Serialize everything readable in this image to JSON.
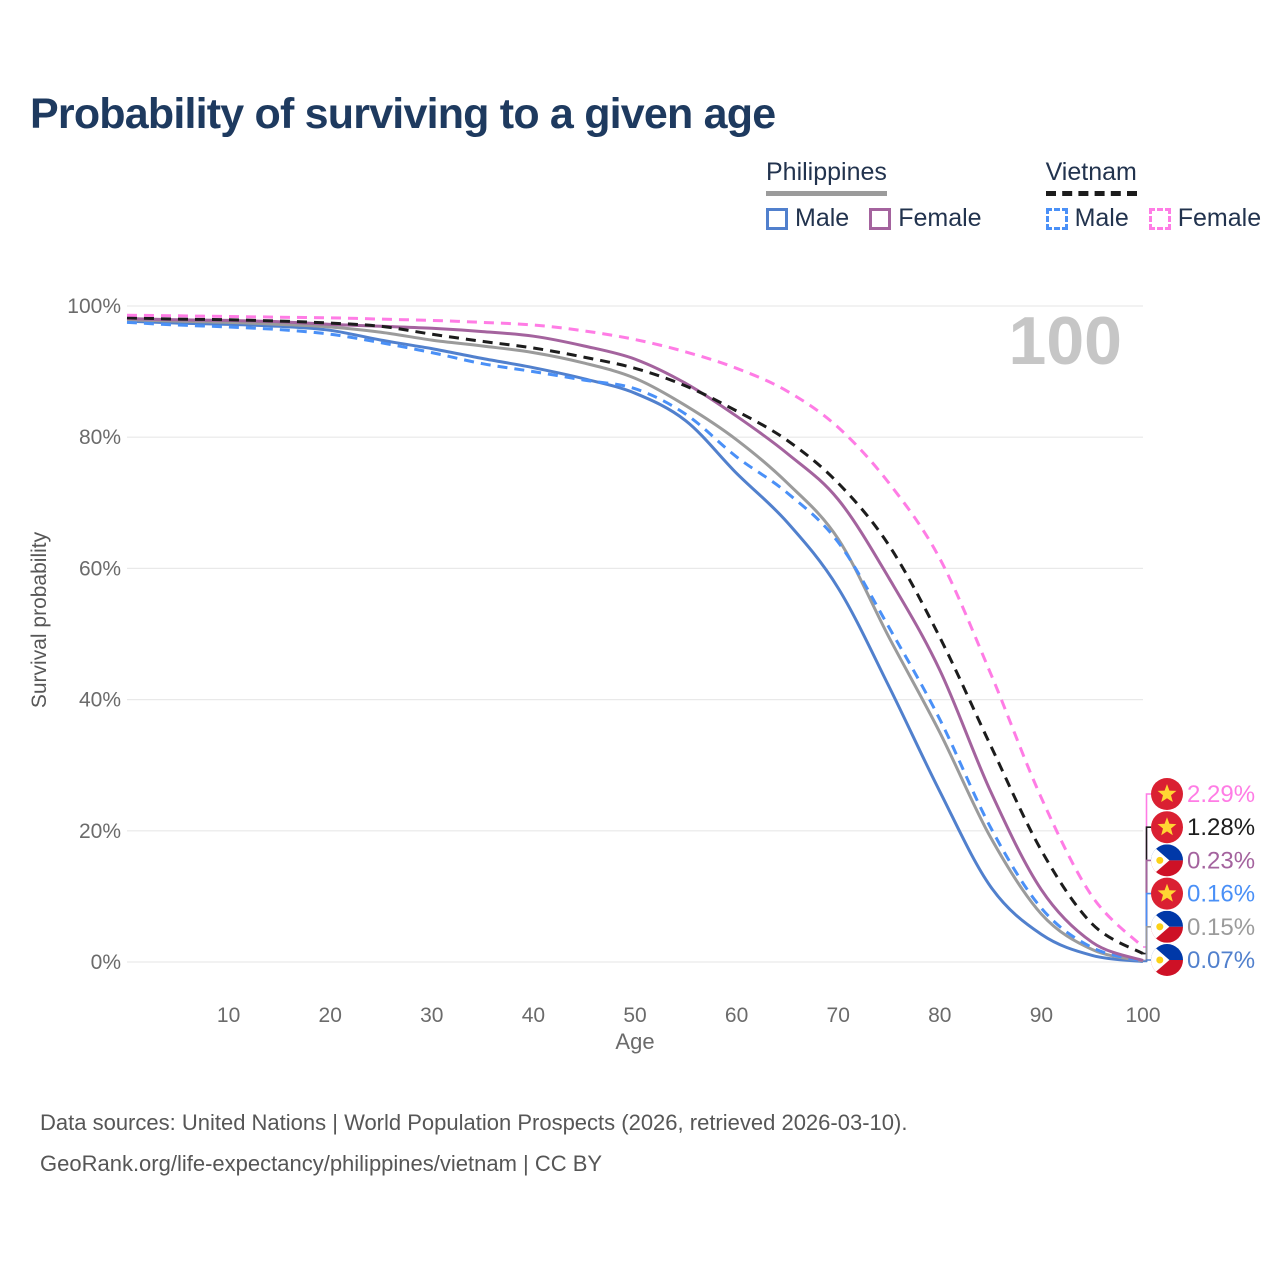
{
  "title": "Probability of surviving to a given age",
  "legend": {
    "groups": [
      {
        "label": "Philippines",
        "line_color": "#9b9b9b",
        "line_style": "solid",
        "items": [
          {
            "label": "Male",
            "color": "#5180cd",
            "style": "solid"
          },
          {
            "label": "Female",
            "color": "#a4639e",
            "style": "solid"
          }
        ]
      },
      {
        "label": "Vietnam",
        "line_color": "#1c1c1c",
        "line_style": "dashed",
        "items": [
          {
            "label": "Male",
            "color": "#4a90f7",
            "style": "dashed"
          },
          {
            "label": "Female",
            "color": "#ff7ce5",
            "style": "dashed"
          }
        ]
      }
    ]
  },
  "chart_data": {
    "type": "line",
    "title": "Probability of surviving to a given age",
    "xlabel": "Age",
    "ylabel": "Survival probability",
    "age_marker": "100",
    "xlim": [
      0,
      100
    ],
    "ylim": [
      0,
      100
    ],
    "grid": "horizontal-only",
    "x_ticks": [
      10,
      20,
      30,
      40,
      50,
      60,
      70,
      80,
      90,
      100
    ],
    "y_ticks": [
      {
        "value": 0,
        "label": "0%"
      },
      {
        "value": 20,
        "label": "20%"
      },
      {
        "value": 40,
        "label": "40%"
      },
      {
        "value": 60,
        "label": "60%"
      },
      {
        "value": 80,
        "label": "80%"
      },
      {
        "value": 100,
        "label": "100%"
      }
    ],
    "x": [
      0,
      5,
      10,
      15,
      20,
      25,
      30,
      35,
      40,
      45,
      50,
      55,
      60,
      65,
      70,
      75,
      80,
      85,
      90,
      95,
      100
    ],
    "series": [
      {
        "name": "Vietnam Female",
        "country": "Vietnam",
        "sex": "Female",
        "flag": "vn",
        "color": "#ff7ce5",
        "dash": true,
        "end_label": "2.29%",
        "label_row": 0,
        "values": [
          98.6,
          98.5,
          98.4,
          98.3,
          98.2,
          98.0,
          97.8,
          97.5,
          97.1,
          96.2,
          94.9,
          93.0,
          90.5,
          87.0,
          81.5,
          73.0,
          61.5,
          44.0,
          25.0,
          10.0,
          2.29
        ]
      },
      {
        "name": "Vietnam (both sexes)",
        "country": "Vietnam",
        "sex": "Both",
        "flag": "vn",
        "color": "#1c1c1c",
        "dash": true,
        "end_label": "1.28%",
        "label_row": 1,
        "values": [
          98.2,
          98.0,
          97.9,
          97.7,
          97.4,
          96.9,
          95.7,
          94.6,
          93.6,
          92.2,
          90.5,
          87.8,
          84.0,
          79.5,
          73.0,
          63.5,
          49.5,
          33.0,
          17.0,
          5.8,
          1.28
        ]
      },
      {
        "name": "Philippines Female",
        "country": "Philippines",
        "sex": "Female",
        "flag": "ph",
        "color": "#a4639e",
        "dash": false,
        "end_label": "0.23%",
        "label_row": 2,
        "values": [
          98.1,
          97.9,
          97.8,
          97.6,
          97.2,
          96.9,
          96.6,
          96.1,
          95.4,
          93.9,
          91.9,
          88.2,
          83.2,
          77.5,
          70.5,
          58.5,
          44.5,
          26.0,
          11.0,
          3.0,
          0.23
        ]
      },
      {
        "name": "Vietnam Male",
        "country": "Vietnam",
        "sex": "Male",
        "flag": "vn",
        "color": "#4a90f7",
        "dash": true,
        "end_label": "0.16%",
        "label_row": 3,
        "values": [
          97.5,
          97.1,
          96.8,
          96.4,
          95.7,
          94.4,
          92.9,
          91.2,
          90.0,
          88.7,
          87.4,
          83.5,
          77.0,
          71.5,
          64.0,
          51.0,
          37.0,
          20.5,
          8.2,
          2.2,
          0.16
        ]
      },
      {
        "name": "Philippines (both sexes)",
        "country": "Philippines",
        "sex": "Both",
        "flag": "ph",
        "color": "#9b9b9b",
        "dash": false,
        "end_label": "0.15%",
        "label_row": 4,
        "values": [
          97.9,
          97.7,
          97.5,
          97.2,
          96.8,
          96.0,
          94.8,
          93.9,
          92.9,
          91.3,
          89.0,
          84.8,
          79.6,
          73.0,
          64.5,
          49.5,
          35.0,
          19.0,
          7.3,
          1.9,
          0.15
        ]
      },
      {
        "name": "Philippines Male",
        "country": "Philippines",
        "sex": "Male",
        "flag": "ph",
        "color": "#5180cd",
        "dash": false,
        "end_label": "0.07%",
        "label_row": 5,
        "values": [
          97.7,
          97.4,
          97.2,
          96.9,
          96.3,
          94.8,
          93.5,
          92.0,
          90.6,
          88.9,
          86.7,
          82.5,
          74.5,
          67.0,
          57.0,
          42.0,
          26.0,
          11.5,
          4.2,
          1.0,
          0.07
        ]
      }
    ],
    "flag_colors": {
      "vn_red": "#da2032",
      "vn_star": "#ffd633",
      "ph_blue": "#0038a8",
      "ph_red": "#ce1126",
      "ph_white": "#ffffff",
      "ph_sun": "#fcd116"
    },
    "style_colors": {
      "title": "#1e3a5f",
      "axis_text": "#6b6b6b",
      "axis_title": "#575757",
      "gridline": "#e9e9e9",
      "watermark": "#c6c6c6"
    }
  },
  "footer": {
    "line1": "Data sources: United Nations | World Population Prospects (2026, retrieved 2026-03-10).",
    "line2": "GeoRank.org/life-expectancy/philippines/vietnam | CC BY"
  }
}
